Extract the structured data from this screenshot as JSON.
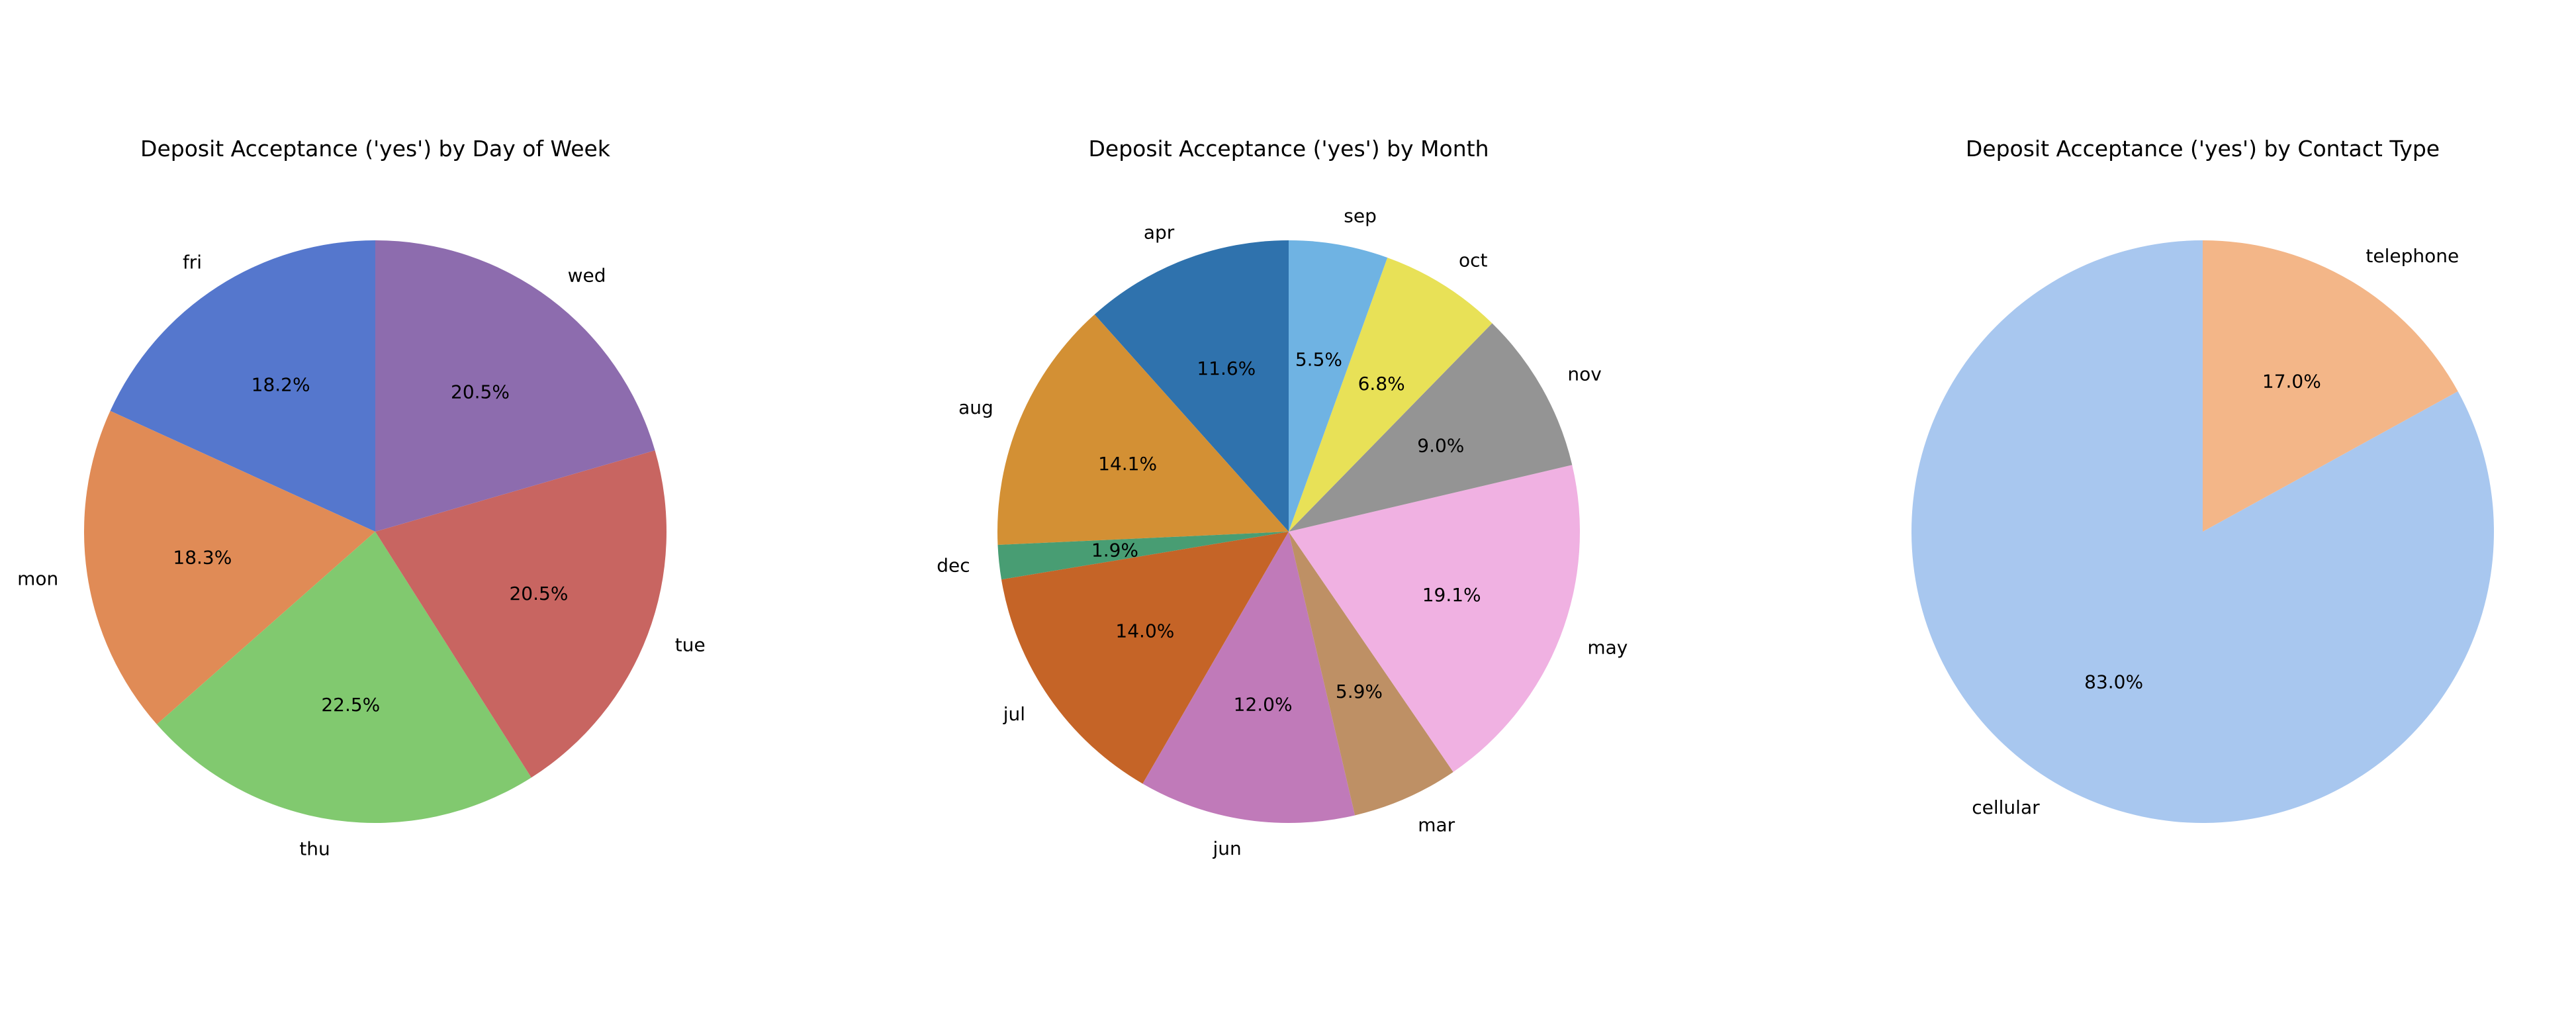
{
  "chart_data": [
    {
      "type": "pie",
      "title": "Deposit Acceptance ('yes') by Day of Week",
      "start_angle_deg": 90,
      "direction": "counterclockwise",
      "slices": [
        {
          "label": "fri",
          "value": 18.2,
          "pct_text": "18.2%",
          "color": "#5577cd"
        },
        {
          "label": "mon",
          "value": 18.3,
          "pct_text": "18.3%",
          "color": "#e08b56"
        },
        {
          "label": "thu",
          "value": 22.5,
          "pct_text": "22.5%",
          "color": "#81c96f"
        },
        {
          "label": "tue",
          "value": 20.5,
          "pct_text": "20.5%",
          "color": "#c86561"
        },
        {
          "label": "wed",
          "value": 20.5,
          "pct_text": "20.5%",
          "color": "#8d6cae"
        }
      ]
    },
    {
      "type": "pie",
      "title": "Deposit Acceptance ('yes') by Month",
      "start_angle_deg": 90,
      "direction": "counterclockwise",
      "slices": [
        {
          "label": "apr",
          "value": 11.6,
          "pct_text": "11.6%",
          "color": "#2f72ad"
        },
        {
          "label": "aug",
          "value": 14.1,
          "pct_text": "14.1%",
          "color": "#d39034"
        },
        {
          "label": "dec",
          "value": 1.9,
          "pct_text": "1.9%",
          "color": "#489d73"
        },
        {
          "label": "jul",
          "value": 14.0,
          "pct_text": "14.0%",
          "color": "#c56427"
        },
        {
          "label": "jun",
          "value": 12.0,
          "pct_text": "12.0%",
          "color": "#c07ab9"
        },
        {
          "label": "mar",
          "value": 5.9,
          "pct_text": "5.9%",
          "color": "#be9065"
        },
        {
          "label": "may",
          "value": 19.1,
          "pct_text": "19.1%",
          "color": "#f0b1e2"
        },
        {
          "label": "nov",
          "value": 9.0,
          "pct_text": "9.0%",
          "color": "#949494"
        },
        {
          "label": "oct",
          "value": 6.8,
          "pct_text": "6.8%",
          "color": "#e8e157"
        },
        {
          "label": "sep",
          "value": 5.5,
          "pct_text": "5.5%",
          "color": "#6fb3e3"
        }
      ]
    },
    {
      "type": "pie",
      "title": "Deposit Acceptance ('yes') by Contact Type",
      "start_angle_deg": 90,
      "direction": "counterclockwise",
      "slices": [
        {
          "label": "cellular",
          "value": 83.0,
          "pct_text": "83.0%",
          "color": "#a8c7ef"
        },
        {
          "label": "telephone",
          "value": 17.0,
          "pct_text": "17.0%",
          "color": "#f3b688"
        }
      ]
    }
  ]
}
